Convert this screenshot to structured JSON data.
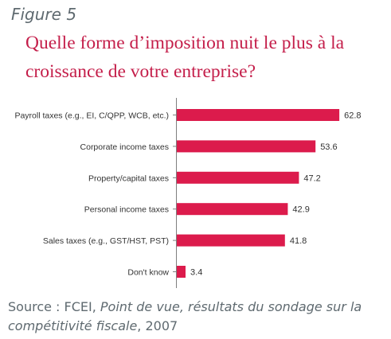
{
  "figure_label": "Figure 5",
  "chart_data": {
    "type": "bar",
    "orientation": "horizontal",
    "title": "Quelle forme d’imposition nuit le plus à la croissance de votre entreprise?",
    "categories": [
      "Payroll taxes (e.g., EI, C/QPP, WCB, etc.)",
      "Corporate income taxes",
      "Property/capital taxes",
      "Personal income taxes",
      "Sales taxes (e.g., GST/HST, PST)",
      "Don't know"
    ],
    "values": [
      62.8,
      53.6,
      47.2,
      42.9,
      41.8,
      3.4
    ],
    "value_labels": [
      "62.8",
      "53.6",
      "47.2",
      "42.9",
      "41.8",
      "3.4"
    ],
    "xlim": [
      0,
      100
    ],
    "grid": false,
    "legend": "none",
    "bar_color": "#dc1b4c"
  },
  "source": {
    "prefix": "Source : FCEI, ",
    "italic1": "Point de vue, résultats du sondage sur la compétitivité fiscale",
    "suffix": ", 2007"
  },
  "colors": {
    "accent": "#c41e4a",
    "axis": "#7f7f7f",
    "text": "#333333",
    "muted": "#5f6a70"
  }
}
